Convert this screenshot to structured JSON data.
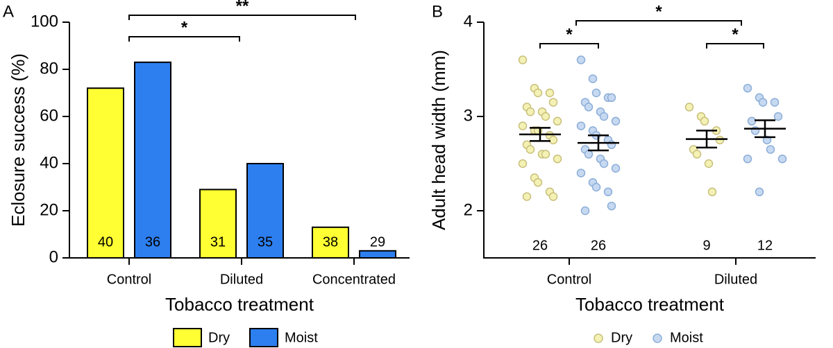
{
  "chart_data": [
    {
      "type": "bar",
      "panel_label": "A",
      "ylabel": "Eclosure success (%)",
      "xlabel": "Tobacco treatment",
      "categories": [
        "Control",
        "Diluted",
        "Concentrated"
      ],
      "series": [
        {
          "name": "Dry",
          "color": "#ffff33",
          "values": [
            72,
            29,
            13
          ],
          "sample_sizes": [
            40,
            31,
            38
          ]
        },
        {
          "name": "Moist",
          "color": "#2d7ff0",
          "values": [
            83,
            40,
            3
          ],
          "sample_sizes": [
            36,
            35,
            29
          ]
        }
      ],
      "ylim": [
        0,
        100
      ],
      "yticks": [
        0,
        20,
        40,
        60,
        80,
        100
      ],
      "annotations": [
        {
          "text": "*"
        },
        {
          "text": "**"
        }
      ],
      "legend": "bottom"
    },
    {
      "type": "strip",
      "panel_label": "B",
      "ylabel": "Adult head width (mm)",
      "xlabel": "Tobacco treatment",
      "categories": [
        "Control",
        "Diluted"
      ],
      "series": [
        {
          "name": "Dry",
          "color": "#f4f1b4",
          "edge_color": "#c9bf7c",
          "values": [
            [
              3.6,
              3.3,
              3.25,
              3.25,
              3.15,
              3.1,
              3.05,
              3.05,
              3.0,
              2.95,
              2.9,
              2.85,
              2.85,
              2.8,
              2.75,
              2.7,
              2.65,
              2.6,
              2.6,
              2.55,
              2.5,
              2.35,
              2.3,
              2.2,
              2.15,
              2.15
            ],
            [
              3.1,
              3.0,
              2.95,
              2.85,
              2.75,
              2.65,
              2.6,
              2.5,
              2.2
            ]
          ],
          "means": [
            2.81,
            2.76
          ],
          "sem": [
            0.07,
            0.09
          ],
          "sample_sizes": [
            26,
            9
          ]
        },
        {
          "name": "Moist",
          "color": "#c7d9f1",
          "edge_color": "#8caed8",
          "values": [
            [
              3.6,
              3.4,
              3.25,
              3.2,
              3.2,
              3.15,
              3.1,
              3.05,
              3.0,
              2.95,
              2.9,
              2.85,
              2.8,
              2.75,
              2.7,
              2.65,
              2.6,
              2.55,
              2.5,
              2.45,
              2.4,
              2.3,
              2.25,
              2.2,
              2.05,
              2.0
            ],
            [
              3.3,
              3.2,
              3.15,
              3.15,
              3.0,
              2.95,
              2.85,
              2.75,
              2.65,
              2.55,
              2.55,
              2.2
            ]
          ],
          "means": [
            2.72,
            2.87
          ],
          "sem": [
            0.08,
            0.09
          ],
          "sample_sizes": [
            26,
            12
          ]
        }
      ],
      "ylim": [
        1.5,
        4
      ],
      "yticks": [
        2,
        3,
        4
      ],
      "annotations": [
        {
          "text": "*"
        },
        {
          "text": "*"
        },
        {
          "text": "*"
        }
      ],
      "legend": "bottom"
    }
  ]
}
